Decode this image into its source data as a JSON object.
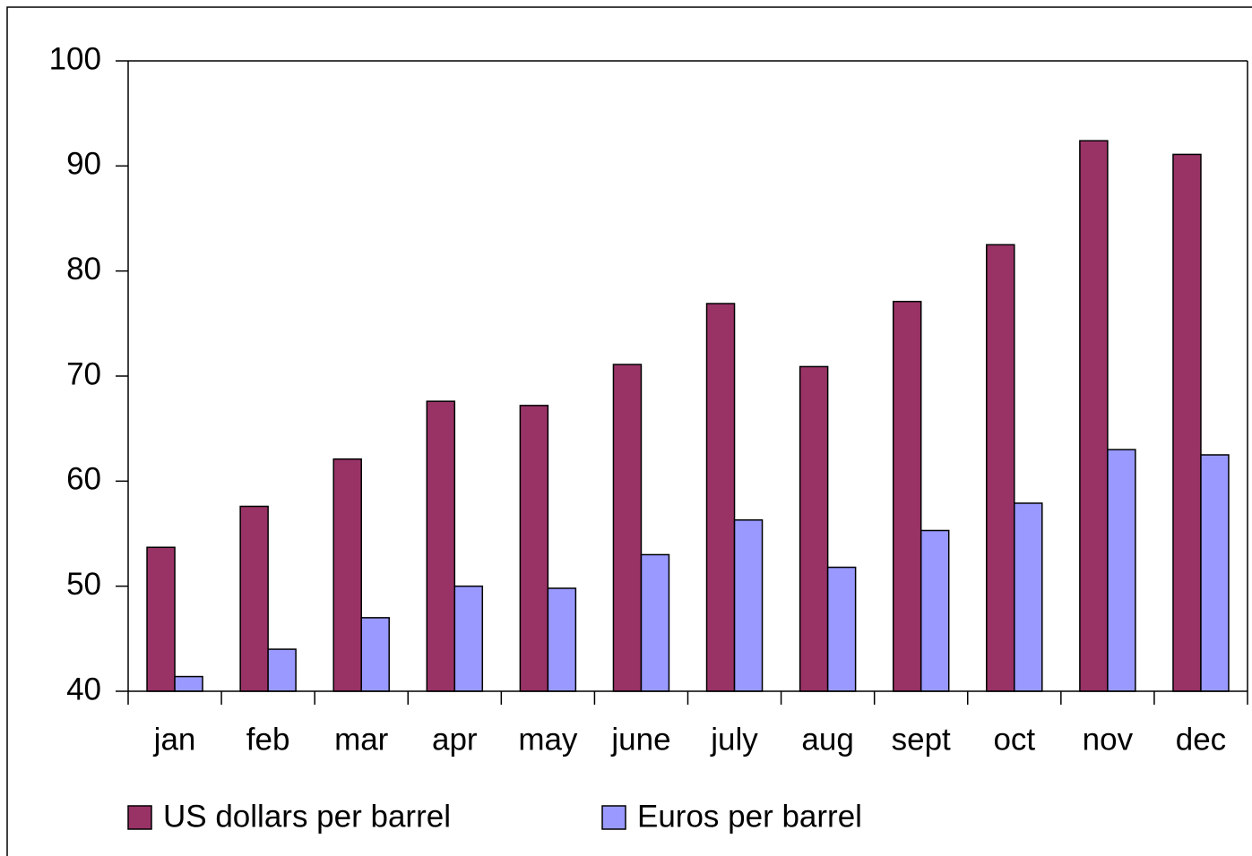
{
  "chart_data": {
    "type": "bar",
    "categories": [
      "jan",
      "feb",
      "mar",
      "apr",
      "may",
      "june",
      "july",
      "aug",
      "sept",
      "oct",
      "nov",
      "dec"
    ],
    "series": [
      {
        "name": "US dollars per barrel",
        "color": "#993366",
        "values": [
          53.7,
          57.6,
          62.1,
          67.6,
          67.2,
          71.1,
          76.9,
          70.9,
          77.1,
          82.5,
          92.4,
          91.1
        ]
      },
      {
        "name": "Euros per barrel",
        "color": "#9999ff",
        "values": [
          41.4,
          44.0,
          47.0,
          50.0,
          49.8,
          53.0,
          56.3,
          51.8,
          55.3,
          57.9,
          63.0,
          62.5
        ]
      }
    ],
    "ylim": [
      40,
      100
    ],
    "yticks": [
      40,
      50,
      60,
      70,
      80,
      90,
      100
    ]
  }
}
